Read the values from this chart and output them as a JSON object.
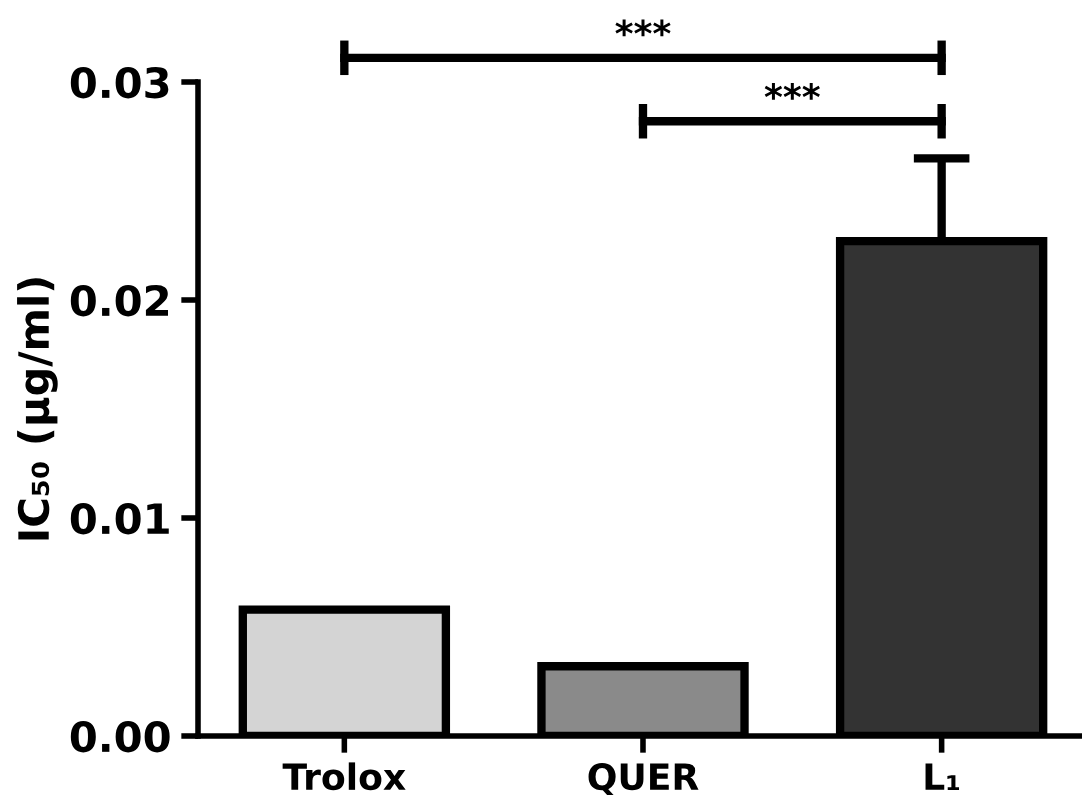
{
  "chart_data": {
    "type": "bar",
    "ylabel": "IC₅₀ (μg/ml)",
    "categories": [
      "Trolox",
      "QUER",
      "L₁"
    ],
    "values": [
      0.0058,
      0.0032,
      0.0227
    ],
    "colors": [
      "#d4d4d4",
      "#8a8a8a",
      "#333333"
    ],
    "errors": [
      null,
      null,
      [
        0.0227,
        0.0265
      ]
    ],
    "ylim": [
      0,
      0.03
    ],
    "yticks": [
      {
        "value": 0,
        "label": "0.00"
      },
      0.01,
      0.02,
      0.03
    ],
    "annotations": [
      "***",
      "***"
    ],
    "grid": false,
    "legend": false
  }
}
